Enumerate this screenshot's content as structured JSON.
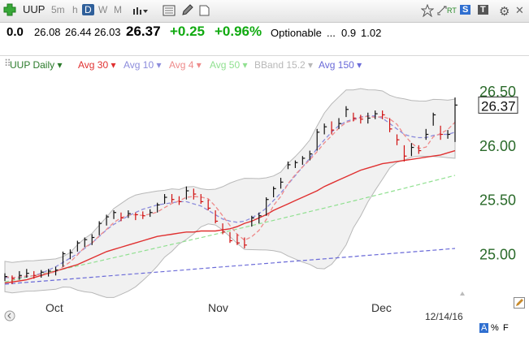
{
  "toolbar": {
    "symbol": "UUP",
    "intervals": [
      "5m",
      "h",
      "D",
      "W",
      "M"
    ],
    "active_interval": "D",
    "rt": "RT",
    "s_badge": "S",
    "t_badge": "T"
  },
  "quote": {
    "prev": "0.0",
    "open": "26.08",
    "high": "26.44",
    "low": "26.03",
    "last": "26.37",
    "change": "+0.25",
    "pct": "+0.96%",
    "optionable": "Optionable",
    "dots": "...",
    "v1": "0.9",
    "v2": "1.02"
  },
  "legend": {
    "symbol_label": "UUP Daily",
    "avg30": "Avg 30",
    "avg10": "Avg 10",
    "avg4": "Avg 4",
    "avg50": "Avg 50",
    "bband": "BBand 15.2",
    "avg150": "Avg 150"
  },
  "colors": {
    "avg30": "#e03030",
    "avg10": "#8c8cdc",
    "avg4": "#ee8a8a",
    "avg50": "#90e090",
    "bband": "#b8b8b8",
    "avg150": "#6a6ad8",
    "green": "#11aa11"
  },
  "chart_data": {
    "type": "line",
    "price_label": "26.37",
    "y_ticks": [
      "26.50",
      "26.00",
      "25.50",
      "25.00"
    ],
    "ylim": [
      24.6,
      26.65
    ],
    "x_labels": [
      "Oct",
      "Nov",
      "Dec"
    ],
    "date_label": "12/14/16",
    "bars": [
      [
        24.82,
        24.75,
        24.79
      ],
      [
        24.8,
        24.72,
        24.77
      ],
      [
        24.84,
        24.76,
        24.8
      ],
      [
        24.86,
        24.78,
        24.82
      ],
      [
        24.84,
        24.77,
        24.8
      ],
      [
        24.85,
        24.78,
        24.83
      ],
      [
        24.86,
        24.79,
        24.84
      ],
      [
        24.88,
        24.8,
        24.85
      ],
      [
        25.02,
        24.88,
        25.0
      ],
      [
        25.04,
        24.95,
        25.01
      ],
      [
        25.12,
        25.02,
        25.1
      ],
      [
        25.15,
        25.06,
        25.13
      ],
      [
        25.18,
        25.08,
        25.15
      ],
      [
        25.3,
        25.17,
        25.28
      ],
      [
        25.36,
        25.26,
        25.34
      ],
      [
        25.4,
        25.32,
        25.38
      ],
      [
        25.38,
        25.3,
        25.33
      ],
      [
        25.4,
        25.33,
        25.37
      ],
      [
        25.38,
        25.31,
        25.36
      ],
      [
        25.39,
        25.32,
        25.35
      ],
      [
        25.41,
        25.34,
        25.38
      ],
      [
        25.47,
        25.38,
        25.45
      ],
      [
        25.55,
        25.46,
        25.52
      ],
      [
        25.55,
        25.47,
        25.5
      ],
      [
        25.53,
        25.45,
        25.48
      ],
      [
        25.62,
        25.5,
        25.58
      ],
      [
        25.6,
        25.5,
        25.55
      ],
      [
        25.55,
        25.46,
        25.48
      ],
      [
        25.5,
        25.4,
        25.42
      ],
      [
        25.4,
        25.28,
        25.3
      ],
      [
        25.28,
        25.18,
        25.2
      ],
      [
        25.2,
        25.1,
        25.12
      ],
      [
        25.18,
        25.08,
        25.1
      ],
      [
        25.15,
        25.05,
        25.08
      ],
      [
        25.35,
        25.25,
        25.33
      ],
      [
        25.38,
        25.28,
        25.35
      ],
      [
        25.52,
        25.35,
        25.5
      ],
      [
        25.62,
        25.52,
        25.6
      ],
      [
        25.7,
        25.6,
        25.66
      ],
      [
        25.85,
        25.78,
        25.82
      ],
      [
        25.86,
        25.79,
        25.84
      ],
      [
        25.9,
        25.82,
        25.88
      ],
      [
        25.95,
        25.86,
        25.92
      ],
      [
        26.15,
        25.95,
        26.12
      ],
      [
        26.2,
        26.1,
        26.17
      ],
      [
        26.22,
        26.1,
        26.14
      ],
      [
        26.25,
        26.15,
        26.2
      ],
      [
        26.36,
        26.26,
        26.33
      ],
      [
        26.3,
        26.22,
        26.25
      ],
      [
        26.28,
        26.2,
        26.24
      ],
      [
        26.3,
        26.2,
        26.25
      ],
      [
        26.32,
        26.24,
        26.29
      ],
      [
        26.32,
        26.24,
        26.28
      ],
      [
        26.25,
        26.12,
        26.15
      ],
      [
        26.1,
        26.0,
        26.05
      ],
      [
        26.0,
        25.85,
        25.9
      ],
      [
        26.02,
        25.9,
        25.98
      ],
      [
        26.0,
        25.92,
        25.95
      ],
      [
        26.15,
        26.05,
        26.1
      ],
      [
        26.3,
        26.18,
        26.28
      ],
      [
        26.18,
        26.05,
        26.1
      ],
      [
        26.14,
        26.06,
        26.1
      ],
      [
        26.44,
        26.03,
        26.37
      ]
    ],
    "avg30": [
      24.73,
      24.74,
      24.75,
      24.76,
      24.78,
      24.8,
      24.82,
      24.84,
      24.86,
      24.88,
      24.9,
      24.93,
      24.96,
      24.99,
      25.02,
      25.04,
      25.06,
      25.08,
      25.1,
      25.12,
      25.14,
      25.16,
      25.17,
      25.18,
      25.19,
      25.2,
      25.2,
      25.21,
      25.21,
      25.21,
      25.22,
      25.23,
      25.25,
      25.28,
      25.3,
      25.33,
      25.36,
      25.4,
      25.43,
      25.46,
      25.49,
      25.52,
      25.55,
      25.58,
      25.62,
      25.65,
      25.68,
      25.71,
      25.74,
      25.77,
      25.79,
      25.81,
      25.83,
      25.84,
      25.85,
      25.86,
      25.87,
      25.88,
      25.89,
      25.9,
      25.91,
      25.93,
      25.95
    ],
    "avg10": [
      24.78,
      24.78,
      24.78,
      24.79,
      24.8,
      24.82,
      24.85,
      24.88,
      24.92,
      24.96,
      25.0,
      25.05,
      25.1,
      25.16,
      25.22,
      25.27,
      25.31,
      25.35,
      25.38,
      25.41,
      25.43,
      25.45,
      25.46,
      25.47,
      25.48,
      25.48,
      25.46,
      25.44,
      25.4,
      25.36,
      25.32,
      25.3,
      25.29,
      25.3,
      25.33,
      25.37,
      25.42,
      25.49,
      25.56,
      25.64,
      25.72,
      25.8,
      25.88,
      25.97,
      26.05,
      26.12,
      26.18,
      26.22,
      26.24,
      26.26,
      26.27,
      26.27,
      26.25,
      26.2,
      26.15,
      26.1,
      26.08,
      26.07,
      26.07,
      26.09,
      26.1,
      26.1,
      26.12
    ]
  }
}
